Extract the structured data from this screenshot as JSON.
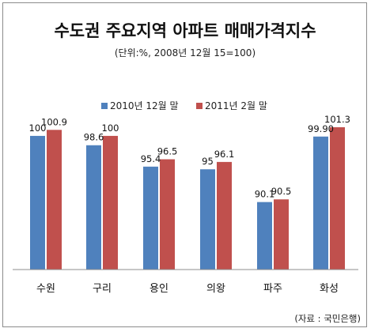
{
  "chart_data": {
    "type": "bar",
    "title": "수도권 주요지역 아파트 매매가격지수",
    "subtitle": "(단위:%, 2008년 12월 15=100)",
    "source": "(자료 : 국민은행)",
    "categories": [
      "수원",
      "구리",
      "용인",
      "의왕",
      "파주",
      "화성"
    ],
    "series": [
      {
        "name": "2010년 12월 말",
        "color": "#4f81bd",
        "values": [
          100,
          98.6,
          95.4,
          95,
          90.1,
          99.9
        ],
        "labels": [
          "100",
          "98.6",
          "95.4",
          "95",
          "90.1",
          "99.90"
        ]
      },
      {
        "name": "2011년 2월 말",
        "color": "#c0504d",
        "values": [
          100.9,
          100,
          96.5,
          96.1,
          90.5,
          101.3
        ],
        "labels": [
          "100.9",
          "100",
          "96.5",
          "96.1",
          "90.5",
          "101.3"
        ]
      }
    ],
    "ylim": [
      80,
      102
    ],
    "xlabel": "",
    "ylabel": "",
    "grid": false,
    "legend": "top-center"
  }
}
